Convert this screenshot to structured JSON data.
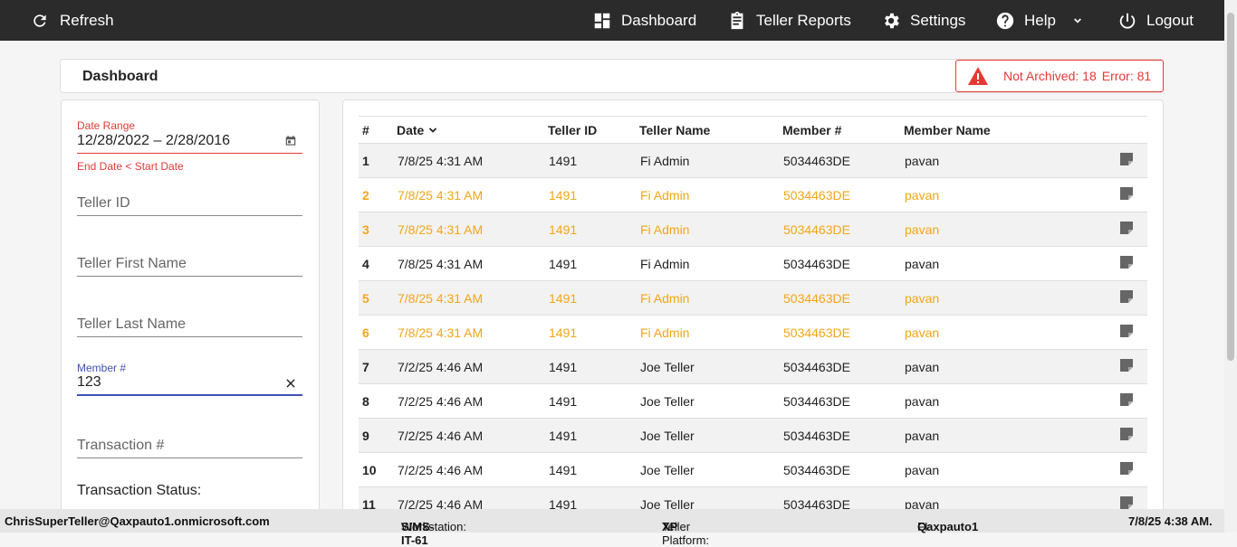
{
  "nav": {
    "refresh": "Refresh",
    "dashboard": "Dashboard",
    "teller_reports": "Teller Reports",
    "settings": "Settings",
    "help": "Help",
    "logout": "Logout"
  },
  "header": {
    "title": "Dashboard",
    "alert": {
      "not_archived": "Not Archived: 18",
      "error": "Error: 81"
    }
  },
  "filters": {
    "date_range": {
      "label": "Date Range",
      "value": "12/28/2022 – 2/28/2016",
      "error": "End Date < Start Date"
    },
    "teller_id": "Teller ID",
    "teller_first_name": "Teller First Name",
    "teller_last_name": "Teller Last Name",
    "member": {
      "label": "Member #",
      "value": "123"
    },
    "transaction": "Transaction #",
    "transaction_status": "Transaction Status:"
  },
  "table": {
    "columns": [
      "#",
      "Date",
      "Teller ID",
      "Teller Name",
      "Member #",
      "Member Name"
    ],
    "rows": [
      {
        "cells": [
          "1",
          "7/8/25 4:31 AM",
          "1491",
          "Fi Admin",
          "5034463DE",
          "pavan"
        ],
        "color": "#222222"
      },
      {
        "cells": [
          "2",
          "7/8/25 4:31 AM",
          "1491",
          "Fi Admin",
          "5034463DE",
          "pavan"
        ],
        "color": "#f5a516"
      },
      {
        "cells": [
          "3",
          "7/8/25 4:31 AM",
          "1491",
          "Fi Admin",
          "5034463DE",
          "pavan"
        ],
        "color": "#f5a516"
      },
      {
        "cells": [
          "4",
          "7/8/25 4:31 AM",
          "1491",
          "Fi Admin",
          "5034463DE",
          "pavan"
        ],
        "color": "#222222"
      },
      {
        "cells": [
          "5",
          "7/8/25 4:31 AM",
          "1491",
          "Fi Admin",
          "5034463DE",
          "pavan"
        ],
        "color": "#f5a516"
      },
      {
        "cells": [
          "6",
          "7/8/25 4:31 AM",
          "1491",
          "Fi Admin",
          "5034463DE",
          "pavan"
        ],
        "color": "#f5a516"
      },
      {
        "cells": [
          "7",
          "7/2/25 4:46 AM",
          "1491",
          "Joe Teller",
          "5034463DE",
          "pavan"
        ],
        "color": "#222222"
      },
      {
        "cells": [
          "8",
          "7/2/25 4:46 AM",
          "1491",
          "Joe Teller",
          "5034463DE",
          "pavan"
        ],
        "color": "#222222"
      },
      {
        "cells": [
          "9",
          "7/2/25 4:46 AM",
          "1491",
          "Joe Teller",
          "5034463DE",
          "pavan"
        ],
        "color": "#222222"
      },
      {
        "cells": [
          "10",
          "7/2/25 4:46 AM",
          "1491",
          "Joe Teller",
          "5034463DE",
          "pavan"
        ],
        "color": "#222222"
      },
      {
        "cells": [
          "11",
          "7/2/25 4:46 AM",
          "1491",
          "Joe Teller",
          "5034463DE",
          "pavan"
        ],
        "color": "#222222"
      }
    ]
  },
  "footer": {
    "user": "ChrisSuperTeller@Qaxpauto1.onmicrosoft.com",
    "workstation_label": "Workstation:",
    "workstation": "SIMS-IT-61",
    "platform_label": "Teller Platform:",
    "platform": "XP",
    "fi_label": "FI:",
    "fi": "Qaxpauto1",
    "datetime": "7/8/25 4:38 AM."
  }
}
